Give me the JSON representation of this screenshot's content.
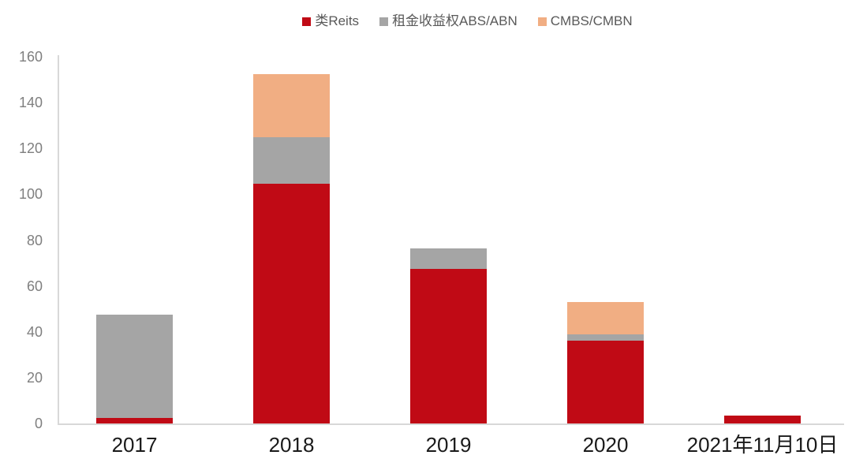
{
  "chart_data": {
    "type": "bar",
    "stacked": true,
    "title": "",
    "xlabel": "",
    "ylabel": "",
    "categories": [
      "2017",
      "2018",
      "2019",
      "2020",
      "2021年11月10日"
    ],
    "series": [
      {
        "name": "类Reits",
        "color": "#c00a15",
        "values": [
          2.5,
          104.5,
          67.5,
          36,
          3.5
        ]
      },
      {
        "name": "租金收益权ABS/ABN",
        "color": "#a5a5a5",
        "values": [
          45,
          20.5,
          9,
          3,
          0
        ]
      },
      {
        "name": "CMBS/CMBN",
        "color": "#f1ae83",
        "values": [
          0,
          27.5,
          0,
          14,
          0
        ]
      }
    ],
    "totals": [
      47.5,
      152.5,
      76.5,
      53,
      3.5
    ],
    "ylim": [
      0,
      160
    ],
    "yticks": [
      0,
      20,
      40,
      60,
      80,
      100,
      120,
      140,
      160
    ],
    "grid": false,
    "legend_position": "top"
  },
  "style": {
    "axis_line_color": "#d8d8d8",
    "tick_label_color": "#7f7f7f",
    "x_label_color": "#1a1a1a",
    "legend_text_color": "#595959",
    "background": "#ffffff"
  }
}
